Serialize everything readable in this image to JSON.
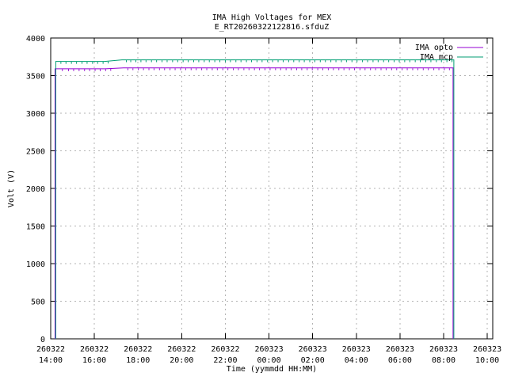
{
  "window": {
    "background": "#ffffff",
    "foreground": "#000000",
    "grid_color": "#b3b3b3"
  },
  "chart_data": {
    "type": "line",
    "title": "IMA High Voltages for MEX",
    "subtitle": "E_RT20260322122816.sfduZ",
    "xlabel": "Time (yymmdd HH:MM)",
    "ylabel": "Volt (V)",
    "ylim": [
      0,
      4000
    ],
    "y_ticks": [
      0,
      500,
      1000,
      1500,
      2000,
      2500,
      3000,
      3500,
      4000
    ],
    "x_ticks": [
      {
        "date": "260322",
        "time": "14:00",
        "minutes": 840
      },
      {
        "date": "260322",
        "time": "16:00",
        "minutes": 960
      },
      {
        "date": "260322",
        "time": "18:00",
        "minutes": 1080
      },
      {
        "date": "260322",
        "time": "20:00",
        "minutes": 1200
      },
      {
        "date": "260322",
        "time": "22:00",
        "minutes": 1320
      },
      {
        "date": "260323",
        "time": "00:00",
        "minutes": 1440
      },
      {
        "date": "260323",
        "time": "02:00",
        "minutes": 1560
      },
      {
        "date": "260323",
        "time": "04:00",
        "minutes": 1680
      },
      {
        "date": "260323",
        "time": "06:00",
        "minutes": 1800
      },
      {
        "date": "260323",
        "time": "08:00",
        "minutes": 1920
      },
      {
        "date": "260323",
        "time": "10:00",
        "minutes": 2040
      }
    ],
    "x_range_minutes": [
      840,
      2055
    ],
    "grid": true,
    "legend_position": "top-right-inside",
    "series": [
      {
        "name": "IMA opto",
        "color": "#9400d3",
        "points": [
          [
            852,
            0
          ],
          [
            852,
            3590
          ],
          [
            990,
            3590
          ],
          [
            1040,
            3602
          ],
          [
            1946,
            3602
          ],
          [
            1946,
            0
          ]
        ],
        "noise_dip_depth_volts": 24,
        "noise_dip_minutes": [
          872,
          889,
          903,
          918,
          933,
          947,
          962,
          976,
          991,
          1005,
          1052,
          1066,
          1081,
          1095,
          1110,
          1124,
          1139,
          1153,
          1168,
          1182,
          1197,
          1211,
          1226,
          1240,
          1255,
          1269,
          1284,
          1298,
          1313,
          1327,
          1342,
          1356,
          1371,
          1385,
          1400,
          1414,
          1429,
          1443,
          1458,
          1472,
          1487,
          1501,
          1516,
          1530,
          1545,
          1559,
          1574,
          1588,
          1603,
          1617,
          1632,
          1646,
          1661,
          1675,
          1690,
          1704,
          1719,
          1733,
          1748,
          1762,
          1777,
          1791,
          1806,
          1820,
          1835,
          1849,
          1864,
          1878,
          1893,
          1907,
          1922,
          1936
        ]
      },
      {
        "name": "IMA mcp",
        "color": "#009e73",
        "points": [
          [
            854,
            0
          ],
          [
            854,
            3688
          ],
          [
            988,
            3688
          ],
          [
            1036,
            3710
          ],
          [
            1948,
            3710
          ],
          [
            1948,
            0
          ]
        ],
        "noise_dip_depth_volts": 26,
        "noise_dip_minutes": [
          868,
          882,
          897,
          911,
          926,
          940,
          955,
          969,
          984,
          998,
          1048,
          1060,
          1074,
          1088,
          1102,
          1117,
          1131,
          1146,
          1160,
          1175,
          1189,
          1204,
          1218,
          1233,
          1247,
          1262,
          1276,
          1291,
          1305,
          1320,
          1334,
          1349,
          1363,
          1378,
          1392,
          1407,
          1421,
          1436,
          1450,
          1465,
          1479,
          1494,
          1508,
          1523,
          1537,
          1552,
          1566,
          1581,
          1595,
          1610,
          1624,
          1639,
          1653,
          1668,
          1682,
          1697,
          1711,
          1726,
          1740,
          1755,
          1769,
          1784,
          1798,
          1813,
          1827,
          1842,
          1856,
          1871,
          1885,
          1900,
          1914,
          1929,
          1943
        ]
      }
    ]
  }
}
